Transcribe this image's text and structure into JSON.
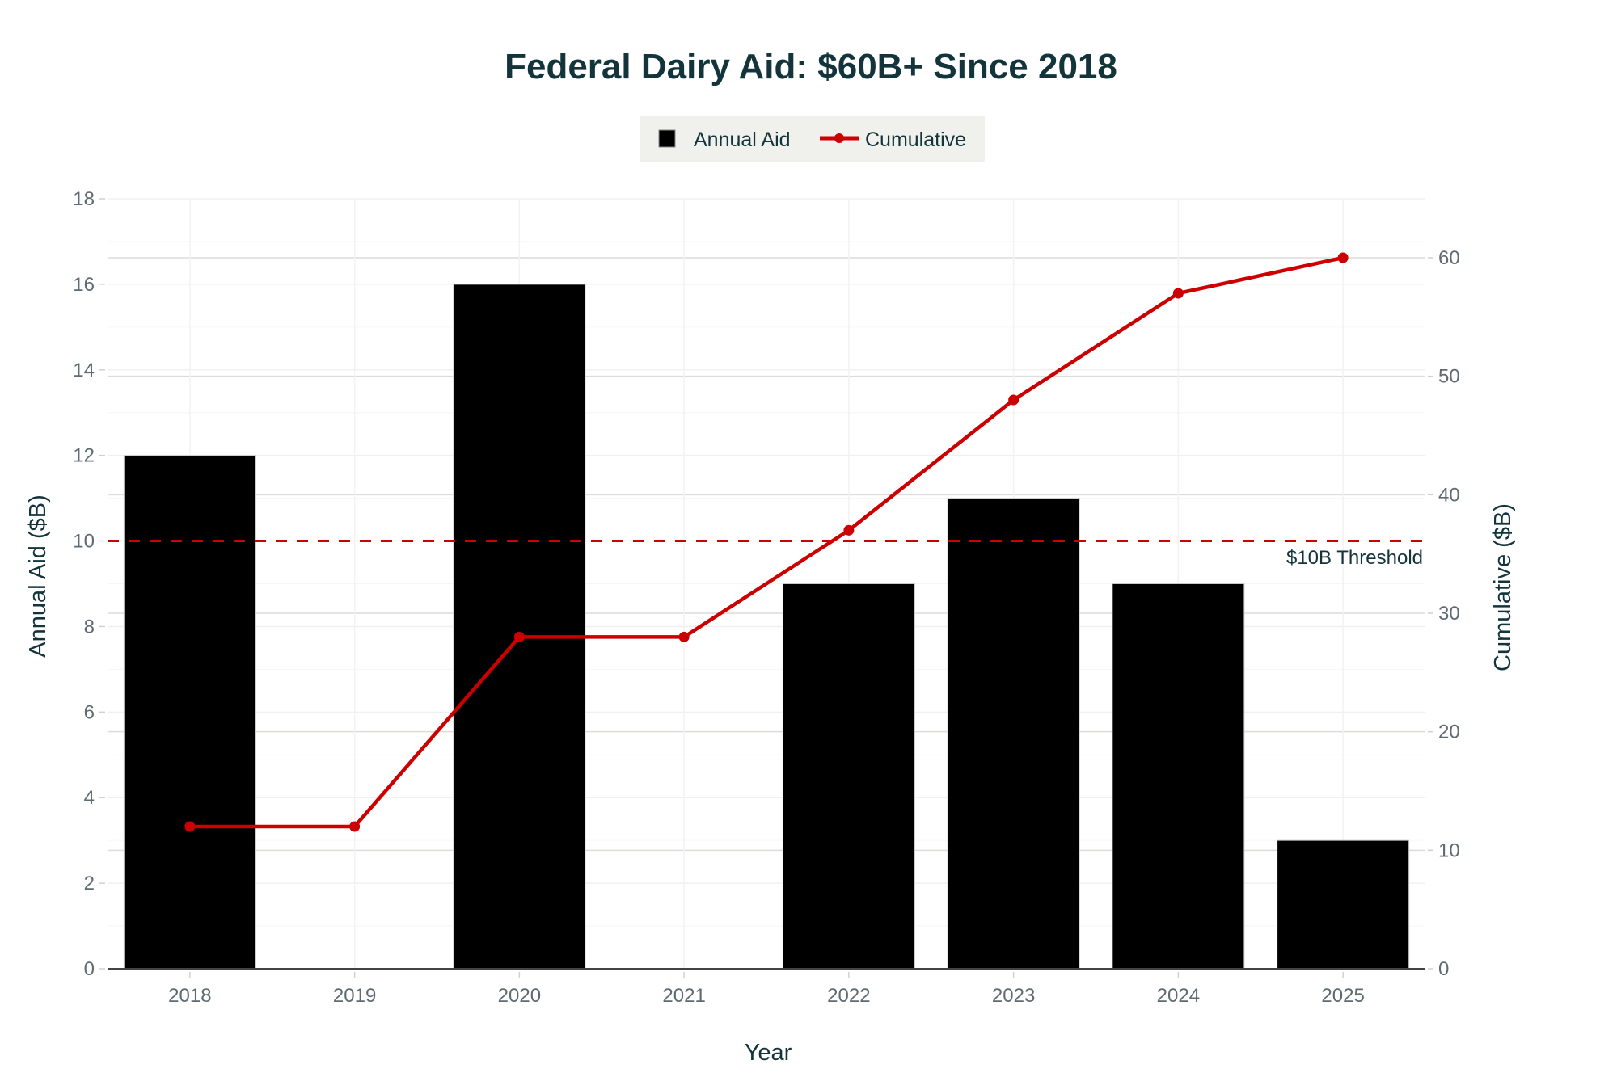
{
  "chart_data": {
    "type": "bar",
    "title": "Federal Dairy Aid: $60B+ Since 2018",
    "categories": [
      "2018",
      "2019",
      "2020",
      "2021",
      "2022",
      "2023",
      "2024",
      "2025"
    ],
    "series": [
      {
        "name": "Annual Aid",
        "type": "bar",
        "axis": "left",
        "color": "#000000",
        "values": [
          12,
          0,
          16,
          0,
          9,
          11,
          9,
          3
        ]
      },
      {
        "name": "Cumulative",
        "type": "line",
        "axis": "right",
        "color": "#cc0000",
        "markers": true,
        "values": [
          12,
          12,
          28,
          28,
          37,
          48,
          57,
          60
        ]
      }
    ],
    "xlabel": "Year",
    "ylabel": "Annual Aid ($B)",
    "y2label": "Cumulative ($B)",
    "ylim": [
      0,
      18
    ],
    "yticks": [
      0,
      2,
      4,
      6,
      8,
      10,
      12,
      14,
      16,
      18
    ],
    "y2lim": [
      0,
      65
    ],
    "y2ticks": [
      0,
      10,
      20,
      30,
      40,
      50,
      60
    ],
    "grid": true,
    "legend": {
      "placement": "top-center",
      "background": "#f0f0ec",
      "entries": [
        "Annual Aid",
        "Cumulative"
      ]
    },
    "annotations": [
      {
        "type": "hline",
        "axis": "left",
        "y": 10,
        "style": "dashed",
        "color": "#cc0000",
        "label": "$10B Threshold"
      }
    ]
  }
}
